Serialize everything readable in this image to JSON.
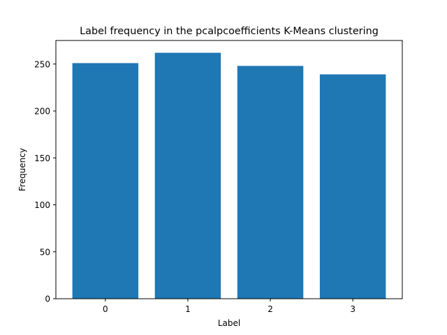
{
  "chart_data": {
    "type": "bar",
    "title": "Label frequency in the pcalpcoefficients K-Means clustering",
    "xlabel": "Label",
    "ylabel": "Frequency",
    "categories": [
      "0",
      "1",
      "2",
      "3"
    ],
    "values": [
      251,
      262,
      248,
      239
    ],
    "xlim": [
      -0.6,
      3.6
    ],
    "ylim": [
      0,
      275.1
    ],
    "yticks": [
      0,
      50,
      100,
      150,
      200,
      250
    ],
    "bar_width": 0.8,
    "bar_color": "#1f77b4",
    "grid": false,
    "legend": "none"
  }
}
